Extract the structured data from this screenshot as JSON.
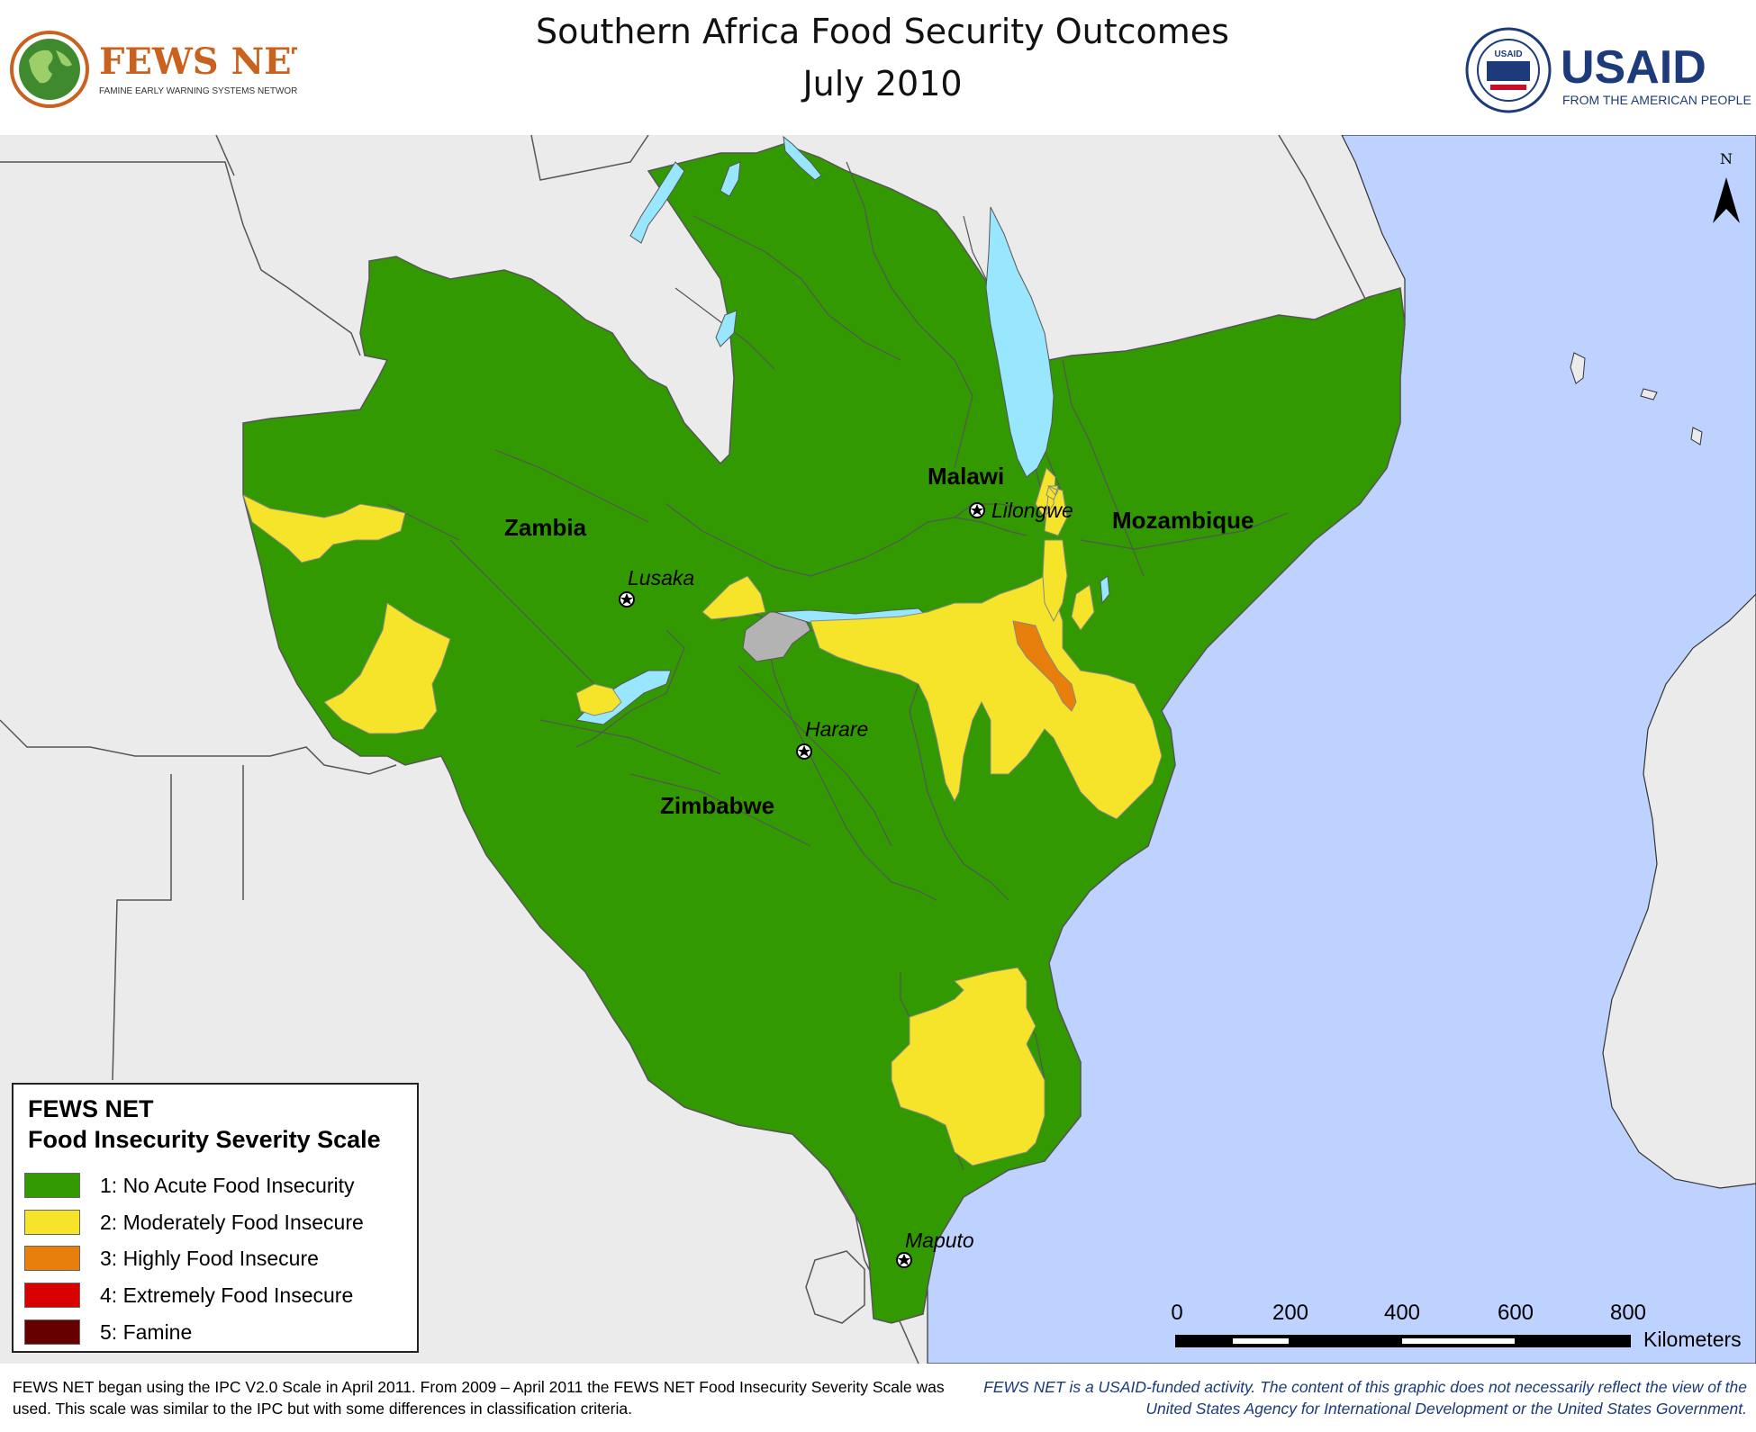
{
  "title": {
    "line1": "Southern Africa Food Security Outcomes",
    "line2": "July 2010"
  },
  "logos": {
    "fews": {
      "name": "FEWS NET",
      "tagline": "FAMINE EARLY WARNING SYSTEMS NETWORK"
    },
    "usaid": {
      "name": "USAID",
      "tagline": "FROM THE AMERICAN PEOPLE",
      "seal_text": "USAID"
    }
  },
  "map": {
    "countries": [
      "Zambia",
      "Malawi",
      "Mozambique",
      "Zimbabwe"
    ],
    "cities": [
      "Lusaka",
      "Lilongwe",
      "Harare",
      "Maputo"
    ],
    "north_label": "N",
    "colors": {
      "phase1": "#339900",
      "phase2": "#f6e42a",
      "phase3": "#e87f0c",
      "phase4": "#d90000",
      "phase5": "#660000",
      "no_data": "#b3b3b3",
      "water": "#99e6ff",
      "ocean": "#bed2ff",
      "land_other": "#ebebeb"
    }
  },
  "legend": {
    "title_line1": "FEWS NET",
    "title_line2": "Food Insecurity Severity Scale",
    "items": [
      {
        "label": "1: No Acute Food Insecurity",
        "color": "#339900"
      },
      {
        "label": "2: Moderately Food Insecure",
        "color": "#f6e42a"
      },
      {
        "label": "3: Highly Food Insecure",
        "color": "#e87f0c"
      },
      {
        "label": "4: Extremely Food Insecure",
        "color": "#d90000"
      },
      {
        "label": "5: Famine",
        "color": "#660000"
      }
    ]
  },
  "scalebar": {
    "ticks": [
      "0",
      "200",
      "400",
      "600",
      "800"
    ],
    "unit": "Kilometers"
  },
  "footer": {
    "left": "FEWS NET began using the IPC V2.0 Scale in April 2011. From 2009 – April 2011 the FEWS NET Food Insecurity Severity Scale was used. This scale was similar to the IPC but with some differences in classification criteria.",
    "right": "FEWS NET is a USAID-funded activity. The content of this graphic does not necessarily reflect the view of the United States Agency for International Development or the United States Government."
  }
}
